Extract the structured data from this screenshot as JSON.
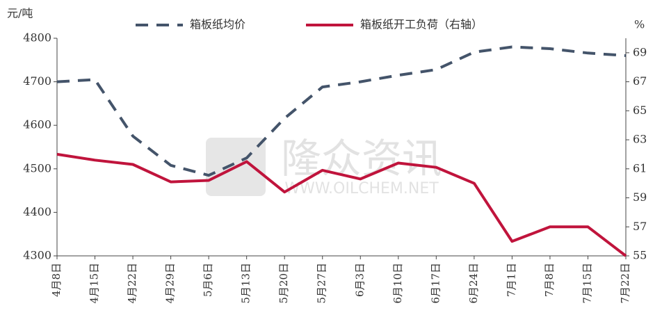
{
  "chart_data": {
    "type": "line",
    "y_label": "元/吨",
    "y2_label": "%",
    "watermark": "隆众资讯",
    "watermark_url": "WWW.OILCHEM.NET",
    "categories": [
      "4月8日",
      "4月15日",
      "4月22日",
      "4月29日",
      "5月6日",
      "5月13日",
      "5月20日",
      "5月27日",
      "6月3日",
      "6月10日",
      "6月17日",
      "6月24日",
      "7月1日",
      "7月8日",
      "7月15日",
      "7月22日"
    ],
    "series": [
      {
        "name": "箱板纸均价",
        "color": "#44546a",
        "dash": true,
        "axis": "y",
        "values": [
          4700,
          4705,
          4575,
          4508,
          4485,
          4525,
          4616,
          4688,
          4700,
          4715,
          4728,
          4768,
          4780,
          4776,
          4766,
          4760
        ]
      },
      {
        "name": "箱板纸开工负荷（右轴）",
        "color": "#c0143c",
        "dash": false,
        "axis": "y2",
        "values": [
          62.0,
          61.6,
          61.3,
          60.1,
          60.2,
          61.5,
          59.4,
          60.9,
          60.3,
          61.4,
          61.1,
          60.0,
          56.0,
          57.0,
          57.0,
          55.0
        ]
      }
    ],
    "ylim": [
      4300,
      4800
    ],
    "yticks": [
      4300,
      4400,
      4500,
      4600,
      4700,
      4800
    ],
    "y2lim": [
      55,
      70
    ],
    "y2ticks": [
      55,
      57,
      59,
      61,
      63,
      65,
      67,
      69
    ]
  }
}
